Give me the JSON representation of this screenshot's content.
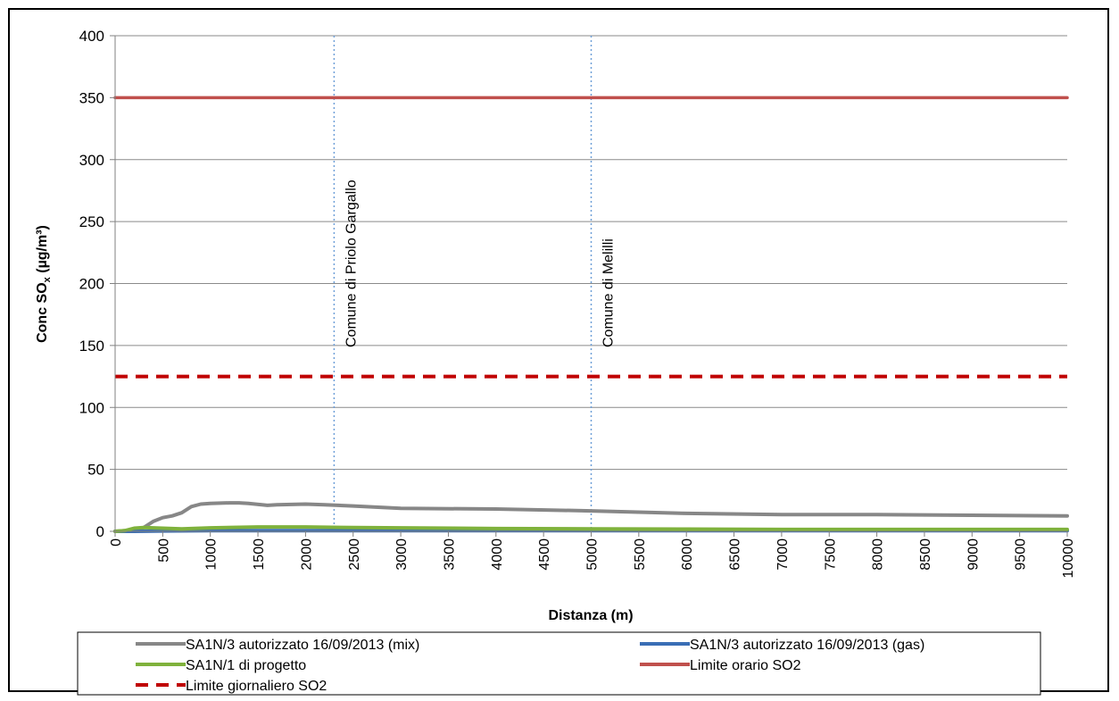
{
  "chart_data": {
    "type": "line",
    "title": "",
    "xlabel": "Distanza (m)",
    "ylabel_main": "Conc SO",
    "ylabel_sub": "x",
    "ylabel_units": " (µg/m³)",
    "xlim": [
      0,
      10000
    ],
    "ylim": [
      0,
      400
    ],
    "x_ticks": [
      0,
      500,
      1000,
      1500,
      2000,
      2500,
      3000,
      3500,
      4000,
      4500,
      5000,
      5500,
      6000,
      6500,
      7000,
      7500,
      8000,
      8500,
      9000,
      9500,
      10000
    ],
    "y_ticks": [
      0,
      50,
      100,
      150,
      200,
      250,
      300,
      350,
      400
    ],
    "grid": "horizontal",
    "legend_position": "bottom",
    "series": [
      {
        "name": "SA1N/3 autorizzato  16/09/2013 (mix)",
        "color": "#878787",
        "dash": "solid",
        "x": [
          0,
          100,
          200,
          300,
          400,
          500,
          600,
          700,
          800,
          900,
          1000,
          1200,
          1300,
          1400,
          1600,
          1700,
          2000,
          2200,
          2500,
          3000,
          4000,
          5000,
          6000,
          7000,
          8000,
          9000,
          10000
        ],
        "values": [
          0,
          0.5,
          1,
          3,
          8,
          11,
          12.5,
          15,
          20,
          22,
          22.5,
          23,
          23,
          22.5,
          21,
          21.5,
          22,
          21.5,
          20.5,
          18.5,
          18,
          16.5,
          14.5,
          13.5,
          13.5,
          13,
          12.5
        ]
      },
      {
        "name": "SA1N/3 autorizzato  16/09/2013 (gas)",
        "color": "#3A6EB5",
        "dash": "solid",
        "x": [
          0,
          200,
          500,
          1000,
          2000,
          3000,
          4000,
          5000,
          6000,
          7000,
          8000,
          9000,
          10000
        ],
        "values": [
          0,
          0,
          0.3,
          0.5,
          0.5,
          0.5,
          0.5,
          0.5,
          0.5,
          0.5,
          0.5,
          0.5,
          0.5
        ]
      },
      {
        "name": "SA1N/1 di progetto",
        "color": "#7FB23C",
        "dash": "solid",
        "x": [
          0,
          100,
          200,
          300,
          500,
          700,
          1000,
          1500,
          2000,
          2500,
          3000,
          4000,
          5000,
          6000,
          7000,
          8000,
          9000,
          10000
        ],
        "values": [
          0,
          0.5,
          2.5,
          3,
          2.5,
          2,
          2.8,
          3.5,
          3.5,
          3,
          2.8,
          2.2,
          2,
          1.8,
          1.5,
          1.5,
          1.5,
          1.5
        ]
      },
      {
        "name": "Limite orario SO2",
        "color": "#C0504D",
        "dash": "solid",
        "x": [
          0,
          10000
        ],
        "values": [
          350,
          350
        ]
      },
      {
        "name": "Limite giornaliero SO2",
        "color": "#C00000",
        "dash": "dashed",
        "x": [
          0,
          10000
        ],
        "values": [
          125,
          125
        ]
      }
    ],
    "annotations": [
      {
        "x": 2300,
        "label": "Comune di Priolo Gargallo"
      },
      {
        "x": 5000,
        "label": "Comune di Melilli"
      }
    ]
  }
}
